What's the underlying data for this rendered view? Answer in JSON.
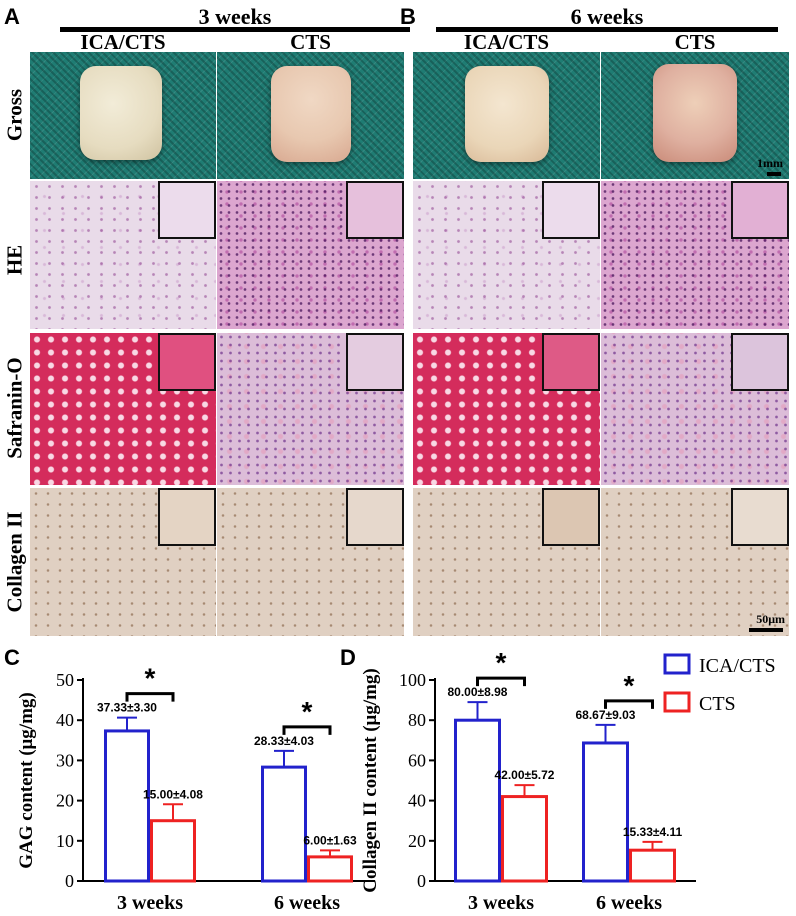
{
  "panels": {
    "A": {
      "letter": "A",
      "title": "3 weeks"
    },
    "B": {
      "letter": "B",
      "title": "6 weeks"
    },
    "C": {
      "letter": "C"
    },
    "D": {
      "letter": "D"
    }
  },
  "columns": [
    "ICA/CTS",
    "CTS",
    "ICA/CTS",
    "CTS"
  ],
  "rows": [
    "Gross",
    "HE",
    "Safranin-O",
    "Collagen II"
  ],
  "scale": {
    "gross": "1mm",
    "micro": "50μm"
  },
  "colors": {
    "ica_cts": "#2222cc",
    "cts": "#ee2222"
  },
  "legend": {
    "ica_cts": "ICA/CTS",
    "cts": "CTS"
  },
  "significance_marker": "*",
  "chart_data": [
    {
      "id": "C",
      "type": "bar",
      "categories": [
        "3 weeks",
        "6 weeks"
      ],
      "ylabel": "GAG content (μg/mg)",
      "ylim": [
        0,
        50
      ],
      "yticks": [
        0,
        10,
        20,
        30,
        40,
        50
      ],
      "series": [
        {
          "name": "ICA/CTS",
          "values": [
            37.33,
            28.33
          ],
          "errors": [
            3.3,
            4.03
          ],
          "labels": [
            "37.33±3.30",
            "28.33±4.03"
          ]
        },
        {
          "name": "CTS",
          "values": [
            15.0,
            6.0
          ],
          "errors": [
            4.08,
            1.63
          ],
          "labels": [
            "15.00±4.08",
            "6.00±1.63"
          ]
        }
      ],
      "significance": [
        "*",
        "*"
      ]
    },
    {
      "id": "D",
      "type": "bar",
      "categories": [
        "3 weeks",
        "6 weeks"
      ],
      "ylabel": "Collagen II content (μg/mg)",
      "ylim": [
        0,
        100
      ],
      "yticks": [
        0,
        20,
        40,
        60,
        80,
        100
      ],
      "series": [
        {
          "name": "ICA/CTS",
          "values": [
            80.0,
            68.67
          ],
          "errors": [
            8.98,
            9.03
          ],
          "labels": [
            "80.00±8.98",
            "68.67±9.03"
          ]
        },
        {
          "name": "CTS",
          "values": [
            42.0,
            15.33
          ],
          "errors": [
            5.72,
            4.11
          ],
          "labels": [
            "42.00±5.72",
            "15.33±4.11"
          ]
        }
      ],
      "significance": [
        "*",
        "*"
      ],
      "legend": "top-right"
    }
  ]
}
